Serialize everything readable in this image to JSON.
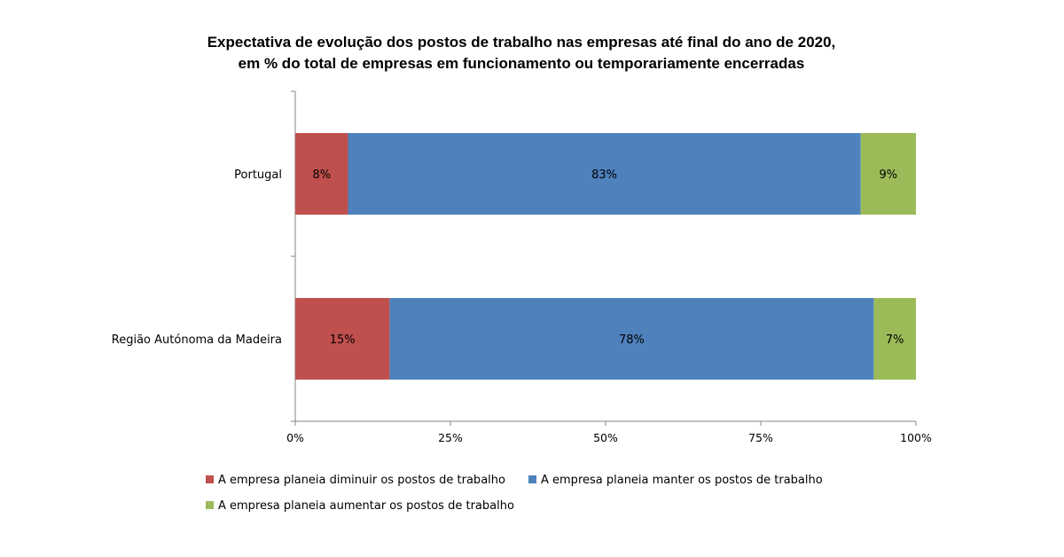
{
  "chart_data": {
    "type": "bar",
    "orientation": "horizontal",
    "stacked": true,
    "title_lines": [
      "Expectativa de evolução dos postos de trabalho nas empresas até final do ano de 2020,",
      "em % do total de empresas em funcionamento ou temporariamente encerradas"
    ],
    "categories": [
      "Portugal",
      "Região Autónoma da Madeira"
    ],
    "series": [
      {
        "name": "A empresa planeia diminuir os postos de trabalho",
        "values": [
          8.5,
          15.2
        ],
        "labels": [
          "8%",
          "15%"
        ],
        "color": "#C0504D"
      },
      {
        "name": "A empresa planeia manter os postos de trabalho",
        "values": [
          82.6,
          78.0
        ],
        "labels": [
          "83%",
          "78%"
        ],
        "color": "#4F81BD"
      },
      {
        "name": "A empresa planeia aumentar os postos de trabalho",
        "values": [
          8.9,
          6.8
        ],
        "labels": [
          "9%",
          "7%"
        ],
        "color": "#9BBB59"
      }
    ],
    "x_ticks": [
      "0%",
      "25%",
      "50%",
      "75%",
      "100%"
    ],
    "xlim": [
      0,
      100
    ],
    "grid": false,
    "legend_position": "bottom-left"
  }
}
